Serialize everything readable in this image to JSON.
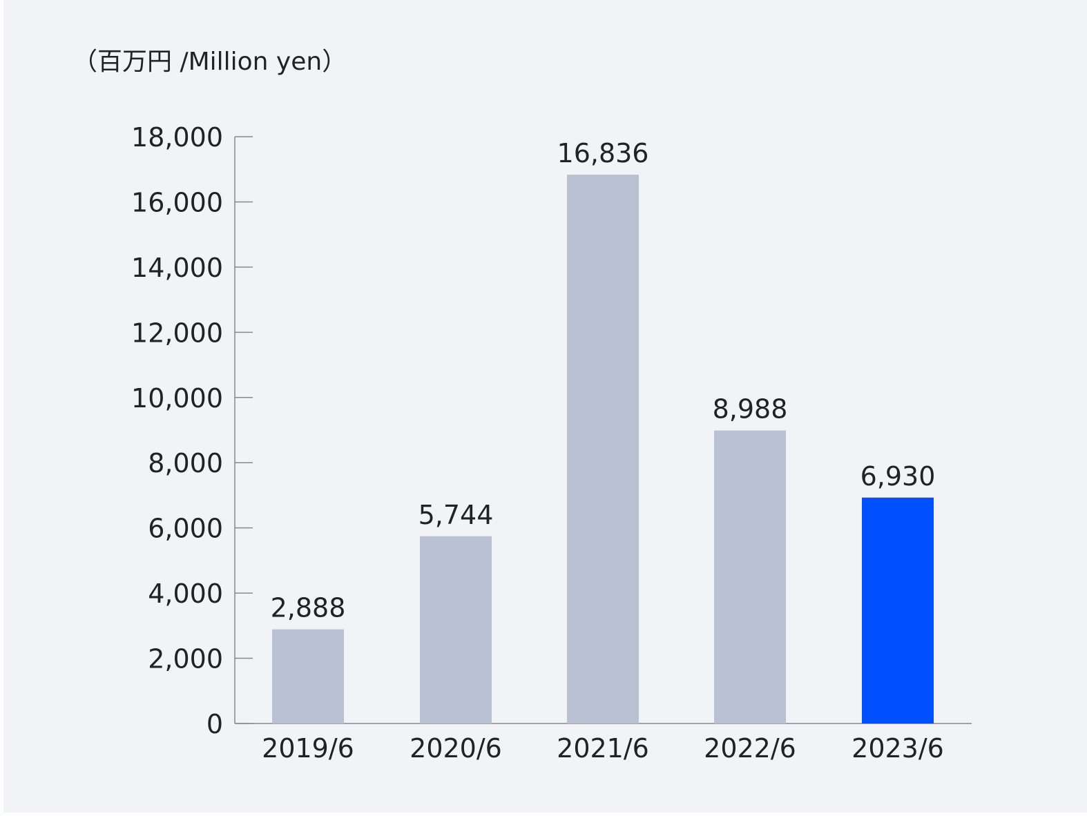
{
  "chart_data": {
    "type": "bar",
    "unit_label": "（百万円 /Million yen）",
    "categories": [
      "2019/6",
      "2020/6",
      "2021/6",
      "2022/6",
      "2023/6"
    ],
    "values": [
      2888,
      5744,
      16836,
      8988,
      6930
    ],
    "value_labels": [
      "2,888",
      "5,744",
      "16,836",
      "8,988",
      "6,930"
    ],
    "y_ticks": [
      0,
      2000,
      4000,
      6000,
      8000,
      10000,
      12000,
      14000,
      16000,
      18000
    ],
    "y_tick_labels": [
      "0",
      "2,000",
      "4,000",
      "6,000",
      "8,000",
      "10,000",
      "12,000",
      "14,000",
      "16,000",
      "18,000"
    ],
    "ylim": [
      0,
      18000
    ],
    "grid": false,
    "colors": {
      "default_bar": "#b8c2d3",
      "highlight_bar": "#0050ff",
      "axis": "#888888"
    },
    "highlight_index": 4
  }
}
